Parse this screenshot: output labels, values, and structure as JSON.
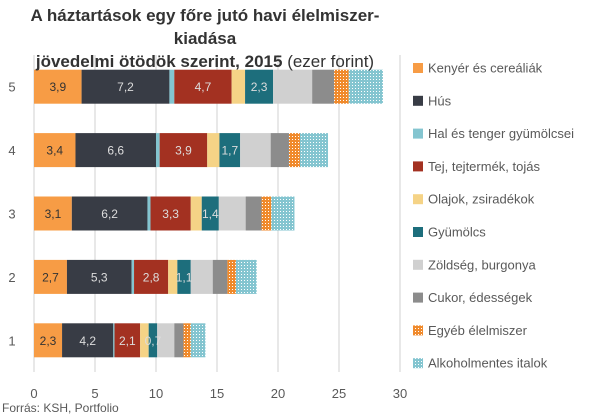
{
  "chart_data": {
    "type": "bar",
    "orientation": "horizontal",
    "stacked": true,
    "title_line1": "A háztartások egy főre jutó havi élelmiszer-kiadása",
    "title_line2": "jövedelmi ötödök szerint, 2015",
    "title_unit": "(ezer forint)",
    "categories": [
      "5",
      "4",
      "3",
      "2",
      "1"
    ],
    "xlim": [
      0,
      30
    ],
    "xticks": [
      0,
      5,
      10,
      15,
      20,
      25,
      30
    ],
    "grid": true,
    "legend_position": "right",
    "series": [
      {
        "name": "Kenyér és cereáliák",
        "color": "#F79C45",
        "label_color": "#333333",
        "labeled": true,
        "values": [
          3.9,
          3.4,
          3.1,
          2.7,
          2.3
        ]
      },
      {
        "name": "Hús",
        "color": "#383C45",
        "label_color": "#DDDDDD",
        "labeled": true,
        "values": [
          7.2,
          6.6,
          6.2,
          5.3,
          4.2
        ]
      },
      {
        "name": "Hal és tenger gyümölcsei",
        "color": "#84C5D0",
        "labeled": false,
        "values": [
          0.4,
          0.3,
          0.25,
          0.2,
          0.1
        ]
      },
      {
        "name": "Tej, tejtermék, tojás",
        "color": "#A33121",
        "label_color": "#DDDDDD",
        "labeled": true,
        "values": [
          4.7,
          3.9,
          3.3,
          2.8,
          2.1
        ]
      },
      {
        "name": "Olajok, zsiradékok",
        "color": "#F5D386",
        "labeled": false,
        "values": [
          1.1,
          1.0,
          0.9,
          0.75,
          0.7
        ]
      },
      {
        "name": "Gyümölcs",
        "color": "#1D6E7C",
        "label_color": "#DDDDDD",
        "labeled": true,
        "values": [
          2.3,
          1.7,
          1.4,
          1.1,
          0.7
        ]
      },
      {
        "name": "Zöldség, burgonya",
        "color": "#D0D0D0",
        "labeled": false,
        "values": [
          3.2,
          2.5,
          2.2,
          1.8,
          1.4
        ]
      },
      {
        "name": "Cukor, édességek",
        "color": "#8C8C8C",
        "labeled": false,
        "values": [
          1.8,
          1.5,
          1.3,
          1.2,
          0.75
        ]
      },
      {
        "name": "Egyéb élelmiszer",
        "color": "#F08A2C",
        "pattern": "dots-orange",
        "labeled": false,
        "values": [
          1.2,
          0.9,
          0.8,
          0.7,
          0.6
        ]
      },
      {
        "name": "Alkoholmentes italok",
        "color": "#84C5D0",
        "pattern": "dots-blue",
        "labeled": false,
        "values": [
          2.8,
          2.3,
          1.9,
          1.7,
          1.2
        ]
      }
    ],
    "data_labels": [
      [
        "3,9",
        "7,2",
        "",
        "4,7",
        "",
        "2,3",
        "",
        "",
        "",
        ""
      ],
      [
        "3,4",
        "6,6",
        "",
        "3,9",
        "",
        "1,7",
        "",
        "",
        "",
        ""
      ],
      [
        "3,1",
        "6,2",
        "",
        "3,3",
        "",
        "1,4",
        "",
        "",
        "",
        ""
      ],
      [
        "2,7",
        "5,3",
        "",
        "2,8",
        "",
        "1,1",
        "",
        "",
        "",
        ""
      ],
      [
        "2,3",
        "4,2",
        "",
        "2,1",
        "",
        "0,7",
        "",
        "",
        "",
        ""
      ]
    ]
  },
  "source": "Forrás: KSH, Portfolio"
}
